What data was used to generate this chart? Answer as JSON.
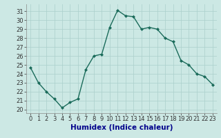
{
  "x": [
    0,
    1,
    2,
    3,
    4,
    5,
    6,
    7,
    8,
    9,
    10,
    11,
    12,
    13,
    14,
    15,
    16,
    17,
    18,
    19,
    20,
    21,
    22,
    23
  ],
  "y": [
    24.7,
    23.0,
    22.0,
    21.2,
    20.2,
    20.8,
    21.2,
    24.5,
    26.0,
    26.2,
    29.2,
    31.1,
    30.5,
    30.4,
    29.0,
    29.2,
    29.0,
    28.0,
    27.6,
    25.5,
    25.0,
    24.0,
    23.7,
    22.8
  ],
  "line_color": "#1a6b5a",
  "marker": "D",
  "markersize": 2.0,
  "linewidth": 1.0,
  "bg_color": "#cce8e4",
  "grid_color": "#aacfcb",
  "xlabel": "Humidex (Indice chaleur)",
  "xlabel_fontsize": 7.5,
  "xlabel_color": "#00008b",
  "yticks": [
    20,
    21,
    22,
    23,
    24,
    25,
    26,
    27,
    28,
    29,
    30,
    31
  ],
  "xticks": [
    0,
    1,
    2,
    3,
    4,
    5,
    6,
    7,
    8,
    9,
    10,
    11,
    12,
    13,
    14,
    15,
    16,
    17,
    18,
    19,
    20,
    21,
    22,
    23
  ],
  "ylim": [
    19.6,
    31.8
  ],
  "xlim": [
    -0.5,
    23.5
  ],
  "tick_fontsize": 6.0
}
